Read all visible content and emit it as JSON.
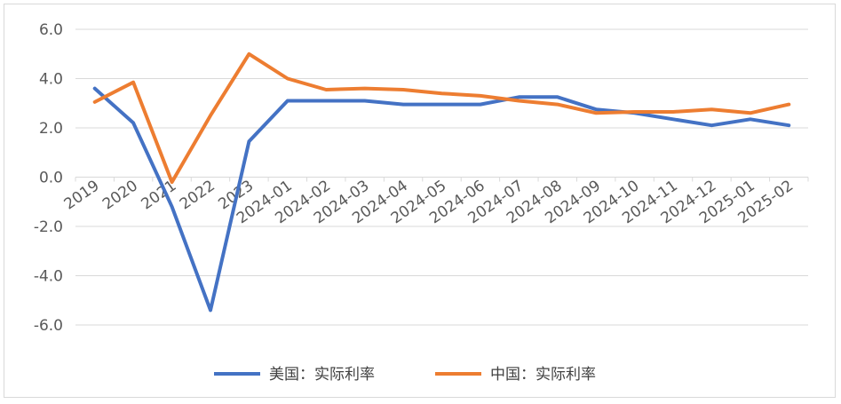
{
  "chart_data": {
    "type": "line",
    "title": "",
    "xlabel": "",
    "ylabel": "",
    "categories": [
      "2019",
      "2020",
      "2021",
      "2022",
      "2023",
      "2024-01",
      "2024-02",
      "2024-03",
      "2024-04",
      "2024-05",
      "2024-06",
      "2024-07",
      "2024-08",
      "2024-09",
      "2024-10",
      "2024-11",
      "2024-12",
      "2025-01",
      "2025-02"
    ],
    "ylim": [
      -6,
      6
    ],
    "yticks": [
      "6.0",
      "4.0",
      "2.0",
      "0.0",
      "-2.0",
      "-4.0",
      "-6.0"
    ],
    "grid": true,
    "legend_position": "bottom",
    "series": [
      {
        "name": "美国：实际利率",
        "color": "#4472C4",
        "values": [
          3.6,
          2.2,
          -1.2,
          -5.4,
          1.45,
          3.1,
          3.1,
          3.1,
          2.95,
          2.95,
          2.95,
          3.25,
          3.25,
          2.75,
          2.6,
          2.35,
          2.1,
          2.35,
          2.1
        ]
      },
      {
        "name": "中国：实际利率",
        "color": "#ED7D31",
        "values": [
          3.05,
          3.85,
          -0.2,
          2.5,
          5.0,
          4.0,
          3.55,
          3.6,
          3.55,
          3.4,
          3.3,
          3.1,
          2.95,
          2.6,
          2.65,
          2.65,
          2.75,
          2.6,
          2.95
        ]
      }
    ]
  }
}
